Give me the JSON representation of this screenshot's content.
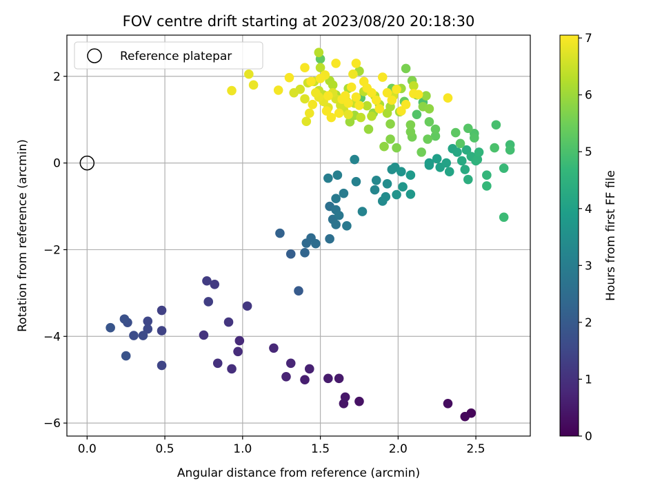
{
  "chart_data": {
    "type": "scatter",
    "title": "FOV centre drift starting at 2023/08/20 20:18:30",
    "xlabel": "Angular distance from reference (arcmin)",
    "ylabel": "Rotation from reference (arcmin)",
    "xlim": [
      -0.13,
      2.85
    ],
    "ylim": [
      -6.3,
      2.95
    ],
    "xticks": [
      0.0,
      0.5,
      1.0,
      1.5,
      2.0,
      2.5
    ],
    "xtick_labels": [
      "0.0",
      "0.5",
      "1.0",
      "1.5",
      "2.0",
      "2.5"
    ],
    "yticks": [
      -6,
      -4,
      -2,
      0,
      2
    ],
    "ytick_labels": [
      "−6",
      "−4",
      "−2",
      "0",
      "2"
    ],
    "grid": true,
    "legend": {
      "placement": "top-left",
      "entries": [
        "Reference platepar"
      ]
    },
    "reference_point": {
      "x": 0.0,
      "y": 0.0,
      "marker": "open-circle"
    },
    "colorbar": {
      "label": "Hours from first FF file",
      "range": [
        0,
        7.05
      ],
      "ticks": [
        0,
        1,
        2,
        3,
        4,
        5,
        6,
        7
      ],
      "tick_labels": [
        "0",
        "1",
        "2",
        "3",
        "4",
        "5",
        "6",
        "7"
      ],
      "colormap": "viridis",
      "stops": [
        "#440154",
        "#482878",
        "#3e4a89",
        "#31688e",
        "#26828e",
        "#1f9e89",
        "#35b779",
        "#6ece58",
        "#b5de2b",
        "#fde725"
      ]
    },
    "points": [
      [
        2.47,
        -5.77,
        0.1
      ],
      [
        2.43,
        -5.85,
        0.15
      ],
      [
        2.32,
        -5.55,
        0.25
      ],
      [
        1.75,
        -5.5,
        0.35
      ],
      [
        1.65,
        -5.55,
        0.4
      ],
      [
        1.66,
        -5.4,
        0.45
      ],
      [
        1.62,
        -4.97,
        0.5
      ],
      [
        1.55,
        -4.97,
        0.55
      ],
      [
        1.4,
        -5.0,
        0.6
      ],
      [
        1.43,
        -4.75,
        0.65
      ],
      [
        1.28,
        -4.93,
        0.7
      ],
      [
        1.31,
        -4.62,
        0.75
      ],
      [
        1.2,
        -4.27,
        0.8
      ],
      [
        0.98,
        -4.1,
        0.85
      ],
      [
        0.97,
        -4.35,
        0.9
      ],
      [
        0.93,
        -4.75,
        0.95
      ],
      [
        0.84,
        -4.62,
        1.0
      ],
      [
        0.75,
        -3.97,
        1.05
      ],
      [
        0.91,
        -3.67,
        1.1
      ],
      [
        1.03,
        -3.3,
        1.15
      ],
      [
        0.82,
        -2.8,
        1.2
      ],
      [
        0.77,
        -2.72,
        1.25
      ],
      [
        0.78,
        -3.2,
        1.3
      ],
      [
        0.48,
        -3.4,
        1.35
      ],
      [
        0.48,
        -3.87,
        1.4
      ],
      [
        0.48,
        -4.67,
        1.45
      ],
      [
        0.39,
        -3.65,
        1.5
      ],
      [
        0.39,
        -3.83,
        1.55
      ],
      [
        0.36,
        -3.98,
        1.6
      ],
      [
        0.3,
        -3.98,
        1.65
      ],
      [
        0.26,
        -3.68,
        1.7
      ],
      [
        0.24,
        -3.6,
        1.75
      ],
      [
        0.25,
        -4.45,
        1.8
      ],
      [
        0.15,
        -3.8,
        1.85
      ],
      [
        1.36,
        -2.95,
        2.0
      ],
      [
        1.31,
        -2.1,
        2.1
      ],
      [
        1.24,
        -1.62,
        2.2
      ],
      [
        1.4,
        -2.07,
        2.3
      ],
      [
        1.41,
        -1.85,
        2.4
      ],
      [
        1.44,
        -1.73,
        2.45
      ],
      [
        1.47,
        -1.86,
        2.5
      ],
      [
        1.56,
        -1.75,
        2.55
      ],
      [
        1.56,
        -1.0,
        2.6
      ],
      [
        1.58,
        -1.3,
        2.65
      ],
      [
        1.6,
        -1.42,
        2.7
      ],
      [
        1.6,
        -1.08,
        2.75
      ],
      [
        1.62,
        -1.21,
        2.8
      ],
      [
        1.67,
        -1.45,
        2.85
      ],
      [
        1.6,
        -0.82,
        2.9
      ],
      [
        1.65,
        -0.7,
        2.95
      ],
      [
        1.55,
        -0.35,
        3.0
      ],
      [
        1.61,
        -0.28,
        3.05
      ],
      [
        1.73,
        -0.43,
        3.1
      ],
      [
        1.77,
        -1.12,
        3.15
      ],
      [
        1.72,
        0.08,
        3.2
      ],
      [
        1.85,
        -0.62,
        3.25
      ],
      [
        1.86,
        -0.4,
        3.3
      ],
      [
        1.9,
        -0.88,
        3.35
      ],
      [
        1.92,
        -0.78,
        3.4
      ],
      [
        1.93,
        -0.48,
        3.45
      ],
      [
        1.96,
        -0.15,
        3.5
      ],
      [
        1.98,
        -0.1,
        3.55
      ],
      [
        1.99,
        -0.73,
        3.6
      ],
      [
        2.02,
        -0.2,
        3.65
      ],
      [
        2.03,
        -0.55,
        3.7
      ],
      [
        2.08,
        -0.72,
        3.75
      ],
      [
        2.08,
        -0.28,
        3.8
      ],
      [
        2.2,
        -0.05,
        3.85
      ],
      [
        2.2,
        0.0,
        3.9
      ],
      [
        2.25,
        0.1,
        3.95
      ],
      [
        2.27,
        -0.1,
        4.0
      ],
      [
        2.31,
        0.0,
        4.05
      ],
      [
        2.33,
        -0.2,
        4.1
      ],
      [
        2.35,
        0.33,
        4.15
      ],
      [
        2.38,
        0.25,
        4.2
      ],
      [
        2.41,
        0.05,
        4.25
      ],
      [
        2.43,
        -0.15,
        4.3
      ],
      [
        2.44,
        0.3,
        4.35
      ],
      [
        2.45,
        -0.38,
        4.4
      ],
      [
        2.47,
        0.15,
        4.45
      ],
      [
        2.5,
        0.05,
        4.5
      ],
      [
        2.51,
        0.08,
        4.55
      ],
      [
        2.52,
        0.25,
        4.6
      ],
      [
        2.57,
        -0.28,
        4.65
      ],
      [
        2.57,
        -0.53,
        4.7
      ],
      [
        2.68,
        -0.12,
        4.75
      ],
      [
        2.68,
        -1.25,
        4.8
      ],
      [
        2.72,
        0.42,
        4.85
      ],
      [
        2.72,
        0.3,
        4.9
      ],
      [
        2.63,
        0.88,
        4.95
      ],
      [
        2.62,
        0.35,
        5.0
      ],
      [
        2.49,
        0.68,
        5.05
      ],
      [
        2.49,
        0.58,
        5.1
      ],
      [
        2.45,
        0.8,
        5.15
      ],
      [
        2.4,
        0.45,
        5.2
      ],
      [
        2.37,
        0.7,
        5.25
      ],
      [
        2.24,
        0.62,
        5.3
      ],
      [
        2.24,
        0.78,
        5.35
      ],
      [
        2.2,
        0.95,
        5.4
      ],
      [
        2.19,
        0.55,
        5.45
      ],
      [
        2.15,
        0.25,
        5.5
      ],
      [
        2.09,
        0.6,
        5.55
      ],
      [
        2.08,
        0.72,
        5.6
      ],
      [
        2.08,
        0.88,
        5.65
      ],
      [
        1.99,
        0.35,
        5.7
      ],
      [
        1.95,
        0.55,
        5.75
      ],
      [
        1.95,
        0.9,
        5.8
      ],
      [
        1.91,
        0.38,
        5.85
      ],
      [
        1.84,
        1.15,
        5.9
      ],
      [
        1.81,
        0.78,
        5.95
      ],
      [
        1.69,
        0.95,
        6.0
      ],
      [
        1.72,
        1.1,
        6.05
      ],
      [
        1.75,
        2.12,
        6.1
      ],
      [
        1.68,
        1.72,
        6.15
      ],
      [
        1.6,
        1.57,
        6.2
      ],
      [
        1.58,
        1.8,
        6.25
      ],
      [
        1.49,
        2.55,
        6.3
      ],
      [
        1.5,
        2.2,
        6.35
      ],
      [
        1.52,
        1.57,
        6.4
      ],
      [
        1.49,
        1.67,
        6.45
      ],
      [
        1.46,
        1.88,
        6.5
      ],
      [
        1.42,
        1.85,
        6.55
      ],
      [
        1.37,
        1.7,
        6.6
      ],
      [
        1.33,
        1.62,
        6.65
      ],
      [
        1.4,
        1.48,
        6.7
      ],
      [
        1.41,
        0.96,
        6.75
      ],
      [
        1.04,
        2.05,
        6.8
      ],
      [
        1.07,
        1.8,
        6.85
      ],
      [
        0.93,
        1.67,
        6.9
      ],
      [
        1.23,
        1.68,
        6.95
      ],
      [
        2.05,
        2.18,
        5.6
      ],
      [
        2.09,
        1.9,
        5.7
      ],
      [
        2.12,
        1.57,
        5.75
      ],
      [
        2.16,
        1.3,
        5.8
      ],
      [
        2.2,
        1.25,
        5.85
      ],
      [
        2.18,
        1.55,
        5.9
      ],
      [
        2.02,
        1.72,
        6.0
      ],
      [
        2.01,
        1.18,
        6.05
      ],
      [
        1.95,
        1.3,
        6.1
      ],
      [
        1.93,
        1.15,
        6.15
      ],
      [
        1.88,
        1.35,
        6.2
      ],
      [
        1.85,
        1.55,
        6.25
      ],
      [
        1.8,
        1.32,
        6.3
      ],
      [
        1.78,
        1.65,
        6.35
      ],
      [
        1.76,
        1.05,
        6.4
      ],
      [
        1.72,
        1.38,
        6.45
      ],
      [
        1.67,
        1.42,
        6.5
      ],
      [
        1.65,
        1.22,
        6.55
      ],
      [
        1.63,
        1.33,
        6.6
      ],
      [
        1.6,
        1.48,
        6.65
      ],
      [
        1.58,
        1.62,
        6.7
      ],
      [
        1.55,
        1.28,
        6.75
      ],
      [
        1.52,
        1.42,
        6.8
      ],
      [
        1.49,
        1.52,
        6.85
      ],
      [
        1.47,
        1.62,
        6.9
      ],
      [
        1.53,
        2.03,
        6.95
      ],
      [
        1.55,
        1.55,
        7.0
      ],
      [
        1.45,
        1.35,
        6.95
      ],
      [
        1.43,
        1.15,
        6.9
      ],
      [
        1.4,
        2.2,
        7.0
      ],
      [
        1.3,
        1.97,
        7.0
      ],
      [
        1.44,
        1.88,
        7.0
      ],
      [
        1.5,
        1.95,
        7.0
      ],
      [
        1.54,
        1.2,
        7.0
      ],
      [
        1.57,
        1.05,
        7.0
      ],
      [
        1.62,
        1.15,
        7.0
      ],
      [
        1.64,
        1.47,
        7.0
      ],
      [
        1.66,
        1.55,
        7.0
      ],
      [
        1.68,
        1.38,
        7.0
      ],
      [
        1.7,
        1.75,
        7.0
      ],
      [
        1.73,
        1.52,
        7.0
      ],
      [
        1.75,
        1.33,
        7.0
      ],
      [
        1.78,
        1.88,
        7.0
      ],
      [
        1.8,
        1.73,
        7.0
      ],
      [
        1.83,
        1.62,
        7.0
      ],
      [
        1.86,
        1.45,
        7.0
      ],
      [
        1.88,
        1.25,
        7.0
      ],
      [
        1.9,
        1.98,
        7.0
      ],
      [
        1.93,
        1.62,
        7.0
      ],
      [
        1.96,
        1.45,
        7.0
      ],
      [
        1.99,
        1.7,
        7.0
      ],
      [
        2.02,
        1.2,
        7.0
      ],
      [
        2.05,
        1.35,
        7.0
      ],
      [
        2.1,
        1.6,
        7.0
      ],
      [
        2.13,
        1.58,
        7.0
      ],
      [
        2.32,
        1.5,
        7.0
      ],
      [
        1.73,
        2.3,
        7.0
      ],
      [
        1.6,
        2.3,
        7.0
      ],
      [
        1.71,
        2.05,
        6.9
      ],
      [
        1.68,
        1.12,
        6.8
      ],
      [
        1.97,
        1.55,
        6.6
      ],
      [
        2.1,
        1.78,
        6.4
      ],
      [
        1.83,
        1.08,
        6.3
      ],
      [
        1.56,
        1.9,
        6.2
      ],
      [
        1.5,
        2.4,
        5.3
      ],
      [
        1.96,
        1.72,
        5.5
      ],
      [
        2.04,
        1.42,
        5.4
      ],
      [
        1.76,
        1.5,
        5.2
      ],
      [
        2.12,
        1.12,
        5.1
      ],
      [
        2.16,
        1.4,
        5.0
      ]
    ]
  }
}
